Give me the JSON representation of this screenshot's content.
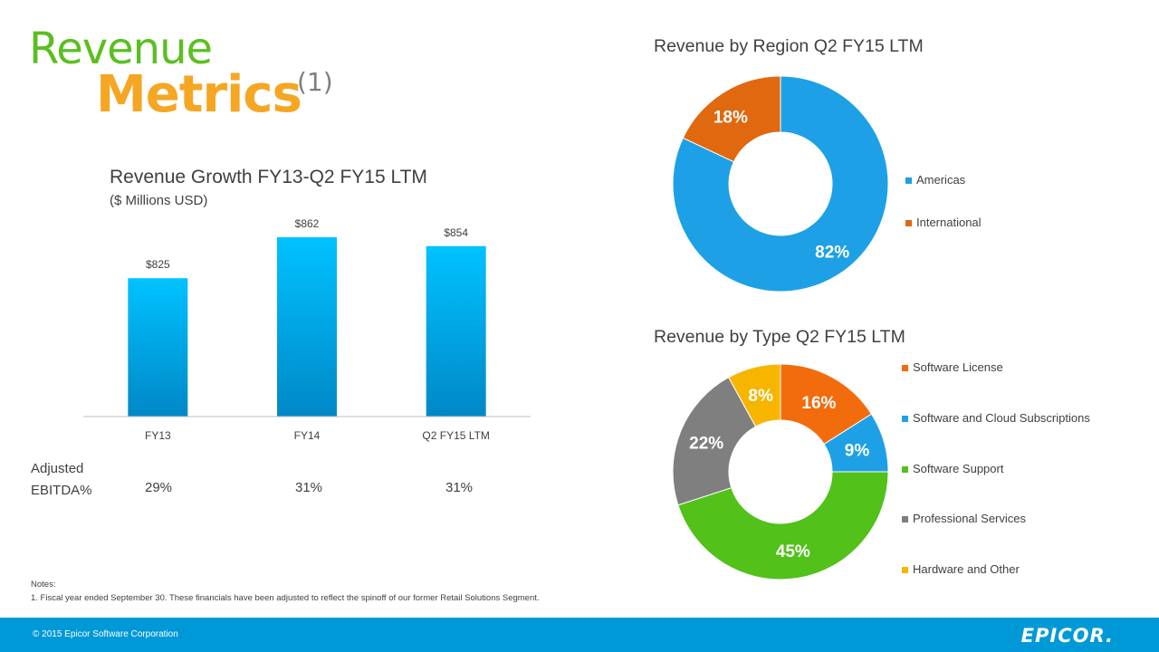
{
  "header": {
    "line1": "Revenue",
    "line2": "Metrics",
    "note": "(1)"
  },
  "ebitda": {
    "label_line1": "Adjusted",
    "label_line2": "EBITDA%",
    "values": [
      "29%",
      "31%",
      "31%"
    ]
  },
  "notes": {
    "heading": "Notes:",
    "line1": "1. Fiscal year ended September 30.  These financials have been adjusted to reflect the spinoff of our former Retail Solutions Segment."
  },
  "footer": {
    "copyright": "© 2015 Epicor Software Corporation",
    "logo": "EPICOR."
  },
  "chart_data": [
    {
      "type": "bar",
      "title": "Revenue Growth FY13-Q2 FY15 LTM",
      "subtitle": "($ Millions USD)",
      "categories": [
        "FY13",
        "FY14",
        "Q2 FY15 LTM"
      ],
      "values": [
        825,
        862,
        854
      ],
      "data_labels": [
        "$825",
        "$862",
        "$854"
      ],
      "ylim": [
        700,
        880
      ],
      "grid": false,
      "colors": {
        "bar_top": "#00c2ff",
        "bar_bottom": "#0088c7"
      }
    },
    {
      "type": "pie",
      "style": "donut",
      "title": "Revenue by Region Q2 FY15 LTM",
      "labels": [
        "Americas",
        "International"
      ],
      "values": [
        82,
        18
      ],
      "data_labels": [
        "82%",
        "18%"
      ],
      "colors": [
        "#1ea0e6",
        "#e0680f"
      ],
      "legend": "right"
    },
    {
      "type": "pie",
      "style": "donut",
      "title": "Revenue by Type Q2 FY15 LTM",
      "labels": [
        "Software License",
        "Software and Cloud Subscriptions",
        "Software Support",
        "Professional Services",
        "Hardware and Other"
      ],
      "values": [
        16,
        9,
        45,
        22,
        8
      ],
      "data_labels": [
        "16%",
        "9%",
        "45%",
        "22%",
        "8%"
      ],
      "colors": [
        "#f26c0d",
        "#1ea0e6",
        "#52c11a",
        "#7f7f7f",
        "#f7b500"
      ],
      "legend": "right"
    }
  ]
}
